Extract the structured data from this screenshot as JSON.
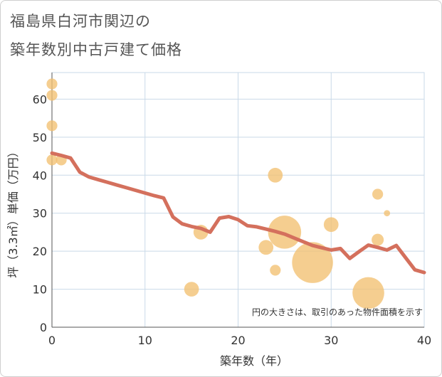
{
  "title": {
    "line1": "福島県白河市関辺の",
    "line2": "築年数別中古戸建て価格"
  },
  "colors": {
    "bubble": "#f2c071",
    "line": "#d4705d",
    "grid": "#c9d9e8",
    "axis": "#555555"
  },
  "chart_data": {
    "type": "scatter",
    "xlabel": "築年数（年）",
    "ylabel": "坪（3.3㎡）単価（万円）",
    "xlim": [
      0,
      40
    ],
    "ylim": [
      0,
      67
    ],
    "xticks": [
      0,
      10,
      20,
      30,
      40
    ],
    "yticks": [
      0,
      10,
      20,
      30,
      40,
      50,
      60
    ],
    "note": "円の大きさは、取引のあった物件面積を示す",
    "bubbles": [
      {
        "x": 0,
        "y": 64,
        "size": 1
      },
      {
        "x": 0,
        "y": 61,
        "size": 1
      },
      {
        "x": 0,
        "y": 53,
        "size": 1
      },
      {
        "x": 0,
        "y": 44,
        "size": 1
      },
      {
        "x": 1,
        "y": 44,
        "size": 1
      },
      {
        "x": 15,
        "y": 10,
        "size": 1.6
      },
      {
        "x": 16,
        "y": 25,
        "size": 1.6
      },
      {
        "x": 23,
        "y": 21,
        "size": 1.6
      },
      {
        "x": 24,
        "y": 40,
        "size": 1.6
      },
      {
        "x": 24,
        "y": 15,
        "size": 1
      },
      {
        "x": 25,
        "y": 25,
        "size": 4.4
      },
      {
        "x": 28,
        "y": 17,
        "size": 5.6
      },
      {
        "x": 30,
        "y": 27,
        "size": 1.6
      },
      {
        "x": 34,
        "y": 9,
        "size": 4.2
      },
      {
        "x": 35,
        "y": 35,
        "size": 1
      },
      {
        "x": 35,
        "y": 23,
        "size": 1.2
      },
      {
        "x": 36,
        "y": 30,
        "size": 0.3
      }
    ],
    "trend": {
      "x": [
        0,
        1,
        2,
        3,
        4,
        5,
        6,
        7,
        8,
        9,
        10,
        11,
        12,
        13,
        14,
        15,
        16,
        17,
        18,
        19,
        20,
        21,
        22,
        23,
        24,
        25,
        26,
        27,
        28,
        29,
        30,
        31,
        32,
        33,
        34,
        35,
        36,
        37,
        38,
        39,
        40
      ],
      "y": [
        45.8,
        45.2,
        44.5,
        40.8,
        39.5,
        38.8,
        38.1,
        37.4,
        36.7,
        36.0,
        35.3,
        34.6,
        34.0,
        29.0,
        27.2,
        26.5,
        26.0,
        25.0,
        28.7,
        29.1,
        28.3,
        26.7,
        26.4,
        25.8,
        25.2,
        24.5,
        23.5,
        22.5,
        21.5,
        20.9,
        20.3,
        20.7,
        18.1,
        19.9,
        21.6,
        21.0,
        20.3,
        21.5,
        18.3,
        15.1,
        14.4
      ]
    }
  }
}
